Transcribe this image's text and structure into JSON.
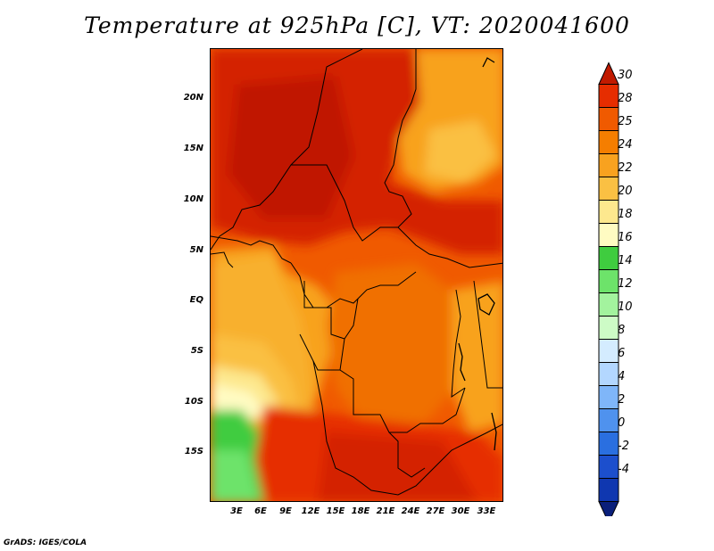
{
  "title": "Temperature at 925hPa [C], VT: 2020041600",
  "footer": "GrADS: IGES/COLA",
  "map": {
    "lat_labels": [
      "20N",
      "15N",
      "10N",
      "5N",
      "EQ",
      "5S",
      "10S",
      "15S"
    ],
    "lon_labels": [
      "3E",
      "6E",
      "9E",
      "12E",
      "15E",
      "18E",
      "21E",
      "24E",
      "27E",
      "30E",
      "33E"
    ],
    "lon_range": [
      0,
      35
    ],
    "lat_range": [
      -20,
      24.5
    ]
  },
  "colorbar": {
    "labels": [
      "30",
      "28",
      "25",
      "24",
      "22",
      "20",
      "18",
      "16",
      "14",
      "12",
      "10",
      "8",
      "6",
      "4",
      "2",
      "0",
      "-2",
      "-4"
    ],
    "colors": [
      "#c11a00",
      "#e62d00",
      "#f05a00",
      "#f57e00",
      "#f8a21f",
      "#fac043",
      "#fde88e",
      "#fffbc2",
      "#3fcc3f",
      "#6de36a",
      "#a3f39e",
      "#cdfbc6",
      "#d4ecff",
      "#b3d7ff",
      "#7fb6f9",
      "#4f92ee",
      "#2a6fe0",
      "#1c4fcd",
      "#0f37b0",
      "#0a1f7a"
    ]
  }
}
